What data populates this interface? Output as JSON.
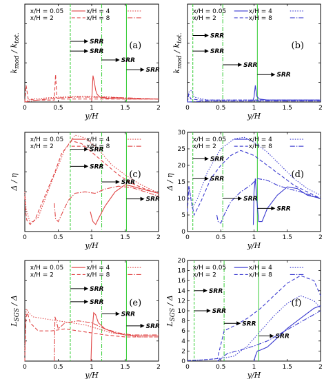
{
  "chart_data": [
    {
      "type": "line",
      "panel_label": "(a)",
      "xlabel": "y/H",
      "ylabel": "k_mod / k_tot.",
      "ylabel_main": "k",
      "ylabel_sub1": "mod",
      "ylabel_mid": " / k",
      "ylabel_sub2": "tot.",
      "xlim": [
        0,
        2
      ],
      "ylim": [
        0,
        1
      ],
      "xticks": [
        "0",
        "0.5",
        "1",
        "1.5",
        "2"
      ],
      "yticks": [],
      "color": "#e04545",
      "legend": [
        "x/H = 0.05",
        "x/H = 4",
        "x/H = 2",
        "x/H = 8"
      ],
      "vlines": [
        0.68,
        1.15,
        1.52
      ],
      "srr": [
        {
          "x0": 0.68,
          "x1": 0.95,
          "y": 0.62,
          "label": "SRR"
        },
        {
          "x0": 0.68,
          "x1": 0.95,
          "y": 0.52,
          "label": "SRR"
        },
        {
          "x0": 1.15,
          "x1": 1.42,
          "y": 0.43,
          "label": "SRR"
        },
        {
          "x0": 1.52,
          "x1": 1.79,
          "y": 0.33,
          "label": "SRR"
        }
      ],
      "series": [
        {
          "name": "x/H = 0.05",
          "dash": "",
          "x": [
            1.0,
            1.02,
            1.04,
            1.06,
            1.08,
            1.12,
            1.2,
            1.35,
            1.5,
            1.7,
            2.0
          ],
          "y": [
            0.01,
            0.27,
            0.2,
            0.12,
            0.08,
            0.05,
            0.04,
            0.035,
            0.03,
            0.03,
            0.03
          ]
        },
        {
          "name": "x/H = 2",
          "dash": "5,3",
          "x": [
            0.0,
            0.02,
            0.05,
            0.15,
            0.3,
            0.44,
            0.46,
            0.48,
            0.55,
            0.7,
            0.9,
            1.1,
            1.3,
            1.5,
            1.7,
            2.0
          ],
          "y": [
            0.0,
            0.17,
            0.03,
            0.02,
            0.02,
            0.02,
            0.28,
            0.04,
            0.03,
            0.03,
            0.03,
            0.03,
            0.03,
            0.03,
            0.03,
            0.03
          ]
        },
        {
          "name": "x/H = 4",
          "dash": "1.5,2",
          "x": [
            0.0,
            0.1,
            0.3,
            0.5,
            0.7,
            0.9,
            1.1,
            1.3,
            1.5,
            1.7,
            2.0
          ],
          "y": [
            0.0,
            0.03,
            0.04,
            0.05,
            0.055,
            0.06,
            0.055,
            0.05,
            0.04,
            0.035,
            0.03
          ]
        },
        {
          "name": "x/H = 8",
          "dash": "7,2,1.5,2",
          "x": [
            0.0,
            0.2,
            0.4,
            0.6,
            0.8,
            1.0,
            1.2,
            1.4,
            1.6,
            1.8,
            2.0
          ],
          "y": [
            0.0,
            0.02,
            0.035,
            0.045,
            0.05,
            0.05,
            0.048,
            0.045,
            0.04,
            0.035,
            0.03
          ]
        }
      ]
    },
    {
      "type": "line",
      "panel_label": "(b)",
      "xlabel": "y/H",
      "ylabel": "k_mod / k_tot.",
      "ylabel_main": "k",
      "ylabel_sub1": "mod",
      "ylabel_mid": " / k",
      "ylabel_sub2": "tot.",
      "xlim": [
        0,
        2
      ],
      "ylim": [
        0,
        1
      ],
      "xticks": [
        "0",
        "0.5",
        "1",
        "1.5",
        "2"
      ],
      "yticks": [],
      "color": "#3a3ad0",
      "legend": [
        "x/H = 0.05",
        "x/H = 4",
        "x/H = 2",
        "x/H = 8"
      ],
      "vlines": [
        0.08,
        0.53,
        1.05
      ],
      "srr": [
        {
          "x0": 0.08,
          "x1": 0.32,
          "y": 0.68,
          "label": "SRR"
        },
        {
          "x0": 0.08,
          "x1": 0.32,
          "y": 0.52,
          "label": "SRR"
        },
        {
          "x0": 0.53,
          "x1": 0.82,
          "y": 0.38,
          "label": "SRR"
        },
        {
          "x0": 1.05,
          "x1": 1.32,
          "y": 0.28,
          "label": "SRR"
        }
      ],
      "series": [
        {
          "name": "x/H = 0.05",
          "dash": "",
          "x": [
            0.98,
            1.0,
            1.02,
            1.04,
            1.08,
            1.2,
            1.5,
            2.0
          ],
          "y": [
            0.01,
            0.05,
            0.17,
            0.06,
            0.03,
            0.02,
            0.02,
            0.02
          ]
        },
        {
          "name": "x/H = 2",
          "dash": "5,3",
          "x": [
            0.0,
            0.02,
            0.05,
            0.2,
            0.5,
            1.0,
            1.5,
            2.0
          ],
          "y": [
            0.0,
            0.08,
            0.03,
            0.02,
            0.02,
            0.02,
            0.02,
            0.02
          ]
        },
        {
          "name": "x/H = 4",
          "dash": "1.5,2",
          "x": [
            0.0,
            0.02,
            0.06,
            0.1,
            0.3,
            0.6,
            1.0,
            1.5,
            2.0
          ],
          "y": [
            0.0,
            0.1,
            0.12,
            0.05,
            0.02,
            0.02,
            0.02,
            0.02,
            0.02
          ]
        },
        {
          "name": "x/H = 8",
          "dash": "7,2,1.5,2",
          "x": [
            0.0,
            0.3,
            0.6,
            1.0,
            1.5,
            2.0
          ],
          "y": [
            0.0,
            0.01,
            0.01,
            0.01,
            0.01,
            0.01
          ]
        }
      ]
    },
    {
      "type": "line",
      "panel_label": "(c)",
      "xlabel": "y/H",
      "ylabel": "Δ / η",
      "ylabel_main": "Δ / η",
      "ylabel_sub1": "",
      "ylabel_mid": "",
      "ylabel_sub2": "",
      "xlim": [
        0,
        2
      ],
      "ylim": [
        0,
        70
      ],
      "xticks": [
        "0",
        "0.5",
        "1",
        "1.5",
        "2"
      ],
      "yticks": [],
      "color": "#e04545",
      "legend": [
        "x/H = 0.05",
        "x/H = 4",
        "x/H = 2",
        "x/H = 8"
      ],
      "vlines": [
        0.68,
        1.15,
        1.52
      ],
      "srr": [
        {
          "x0": 0.68,
          "x1": 0.95,
          "y": 58,
          "label": "SRR"
        },
        {
          "x0": 0.68,
          "x1": 0.95,
          "y": 46,
          "label": "SRR"
        },
        {
          "x0": 1.15,
          "x1": 1.42,
          "y": 35,
          "label": "SRR"
        },
        {
          "x0": 1.52,
          "x1": 1.79,
          "y": 23,
          "label": "SRR"
        }
      ],
      "series": [
        {
          "name": "x/H = 0.05",
          "dash": "",
          "x": [
            0.98,
            1.0,
            1.02,
            1.06,
            1.1,
            1.2,
            1.35,
            1.5,
            1.6,
            1.75,
            2.0
          ],
          "y": [
            14,
            10,
            7,
            5,
            9,
            18,
            28,
            33,
            32,
            30,
            27
          ]
        },
        {
          "name": "x/H = 2",
          "dash": "5,3",
          "x": [
            0.0,
            0.01,
            0.03,
            0.08,
            0.15,
            0.3,
            0.45,
            0.55,
            0.7,
            0.85,
            1.0,
            1.2,
            1.4,
            1.6,
            1.8,
            2.0
          ],
          "y": [
            25,
            15,
            8,
            5,
            8,
            25,
            42,
            55,
            64,
            62,
            56,
            48,
            40,
            34,
            30,
            27
          ]
        },
        {
          "name": "x/H = 4",
          "dash": "1.5,2",
          "x": [
            0.0,
            0.02,
            0.08,
            0.2,
            0.4,
            0.6,
            0.75,
            0.9,
            1.1,
            1.3,
            1.5,
            1.7,
            2.0
          ],
          "y": [
            28,
            16,
            6,
            10,
            35,
            58,
            68,
            66,
            58,
            47,
            40,
            34,
            27
          ]
        },
        {
          "name": "x/H = 8",
          "dash": "7,2,1.5,2",
          "x": [
            0.44,
            0.46,
            0.5,
            0.55,
            0.65,
            0.75,
            0.9,
            1.05,
            1.2,
            1.4,
            1.6,
            1.8,
            2.0
          ],
          "y": [
            20,
            9,
            7,
            12,
            22,
            27,
            28,
            27,
            30,
            32,
            31,
            28,
            25
          ]
        }
      ]
    },
    {
      "type": "line",
      "panel_label": "(d)",
      "xlabel": "y/H",
      "ylabel": "Δ / η",
      "ylabel_main": "Δ / η",
      "ylabel_sub1": "",
      "ylabel_mid": "",
      "ylabel_sub2": "",
      "xlim": [
        0,
        2
      ],
      "ylim": [
        0,
        30
      ],
      "xticks": [
        "0",
        "0.5",
        "1",
        "1.5",
        "2"
      ],
      "yticks": [
        "0",
        "5",
        "10",
        "15",
        "20",
        "25",
        "30"
      ],
      "color": "#3a3ad0",
      "legend": [
        "x/H = 0.05",
        "x/H = 4",
        "x/H = 2",
        "x/H = 8"
      ],
      "vlines": [
        0.08,
        0.53,
        1.05
      ],
      "srr": [
        {
          "x0": 0.08,
          "x1": 0.32,
          "y": 22,
          "label": "SRR"
        },
        {
          "x0": 0.08,
          "x1": 0.32,
          "y": 16,
          "label": "SRR"
        },
        {
          "x0": 0.53,
          "x1": 0.82,
          "y": 10,
          "label": "SRR"
        },
        {
          "x0": 1.05,
          "x1": 1.32,
          "y": 7,
          "label": "SRR"
        }
      ],
      "series": [
        {
          "name": "x/H = 0.05",
          "dash": "",
          "x": [
            0.99,
            1.0,
            1.02,
            1.04,
            1.07,
            1.12,
            1.2,
            1.35,
            1.5,
            1.65,
            1.8,
            2.0
          ],
          "y": [
            2,
            12,
            16,
            10,
            3,
            3,
            7,
            11,
            13.5,
            13,
            11,
            10
          ]
        },
        {
          "name": "x/H = 2",
          "dash": "5,3",
          "x": [
            0.0,
            0.02,
            0.05,
            0.1,
            0.2,
            0.35,
            0.5,
            0.65,
            0.8,
            1.0,
            1.2,
            1.4,
            1.6,
            1.8,
            2.0
          ],
          "y": [
            6,
            14,
            10,
            5,
            9,
            16,
            20,
            23,
            24.5,
            23,
            20,
            17,
            14,
            12,
            10
          ]
        },
        {
          "name": "x/H = 4",
          "dash": "1.5,2",
          "x": [
            0.0,
            0.03,
            0.07,
            0.15,
            0.3,
            0.5,
            0.7,
            0.85,
            1.0,
            1.2,
            1.4,
            1.6,
            1.8,
            2.0
          ],
          "y": [
            10,
            13,
            7,
            10,
            18,
            25,
            28,
            28.5,
            27,
            24,
            20,
            16,
            13,
            11
          ]
        },
        {
          "name": "x/H = 8",
          "dash": "7,2,1.5,2",
          "x": [
            0.44,
            0.46,
            0.5,
            0.55,
            0.65,
            0.8,
            0.95,
            1.05,
            1.2,
            1.35,
            1.5,
            1.7,
            2.0
          ],
          "y": [
            5,
            3,
            2.5,
            5,
            9,
            12,
            14,
            16,
            15.5,
            14,
            13,
            12,
            10
          ]
        }
      ]
    },
    {
      "type": "line",
      "panel_label": "(e)",
      "xlabel": "y/H",
      "ylabel": "L_SGS / Δ",
      "ylabel_main": "L",
      "ylabel_sub1": "SGS",
      "ylabel_mid": " / Δ",
      "ylabel_sub2": "",
      "xlim": [
        0,
        2
      ],
      "ylim": [
        0,
        5
      ],
      "xticks": [
        "0",
        "0.5",
        "1",
        "1.5",
        "2"
      ],
      "yticks": [],
      "color": "#e04545",
      "legend": [
        "x/H = 0.05",
        "x/H = 4",
        "x/H = 2",
        "x/H = 8"
      ],
      "vlines": [
        0.68,
        1.15,
        1.52
      ],
      "srr": [
        {
          "x0": 0.68,
          "x1": 0.95,
          "y": 3.6,
          "label": "SRR"
        },
        {
          "x0": 0.68,
          "x1": 0.95,
          "y": 2.95,
          "label": "SRR"
        },
        {
          "x0": 1.15,
          "x1": 1.42,
          "y": 2.35,
          "label": "SRR"
        },
        {
          "x0": 1.52,
          "x1": 1.79,
          "y": 1.75,
          "label": "SRR"
        }
      ],
      "series": [
        {
          "name": "x/H = 0.05",
          "dash": "",
          "x": [
            0.99,
            1.0,
            1.03,
            1.06,
            1.1,
            1.2,
            1.35,
            1.5,
            1.7,
            2.0
          ],
          "y": [
            0.0,
            1.2,
            2.4,
            2.3,
            1.9,
            1.6,
            1.4,
            1.3,
            1.25,
            1.25
          ]
        },
        {
          "name": "x/H = 2",
          "dash": "5,3",
          "x": [
            0.0,
            0.01,
            0.02,
            0.04,
            0.08,
            0.2,
            0.4,
            0.6,
            0.8,
            1.0,
            1.2,
            1.5,
            1.8,
            2.0
          ],
          "y": [
            0.0,
            1.5,
            2.2,
            2.4,
            1.9,
            1.5,
            1.5,
            1.6,
            1.5,
            1.4,
            1.3,
            1.2,
            1.2,
            1.2
          ]
        },
        {
          "name": "x/H = 4",
          "dash": "1.5,2",
          "x": [
            0.0,
            0.02,
            0.06,
            0.12,
            0.3,
            0.5,
            0.7,
            0.9,
            1.1,
            1.3,
            1.5,
            1.7,
            2.0
          ],
          "y": [
            0.5,
            2.6,
            2.4,
            2.2,
            2.1,
            2.0,
            1.9,
            1.8,
            1.6,
            1.4,
            1.3,
            1.2,
            1.2
          ]
        },
        {
          "name": "x/H = 8",
          "dash": "7,2,1.5,2",
          "x": [
            0.44,
            0.45,
            0.47,
            0.5,
            0.6,
            0.8,
            1.0,
            1.2,
            1.4,
            1.6,
            1.8,
            2.0
          ],
          "y": [
            0.0,
            2.2,
            2.0,
            1.6,
            1.9,
            2.0,
            1.9,
            1.6,
            1.4,
            1.3,
            1.3,
            1.3
          ]
        }
      ]
    },
    {
      "type": "line",
      "panel_label": "(f)",
      "xlabel": "y/H",
      "ylabel": "L_SGS / Δ",
      "ylabel_main": "L",
      "ylabel_sub1": "SGS",
      "ylabel_mid": " / Δ",
      "ylabel_sub2": "",
      "xlim": [
        0,
        2
      ],
      "ylim": [
        0,
        20
      ],
      "xticks": [
        "0",
        "0.5",
        "1",
        "1.5",
        "2"
      ],
      "yticks": [
        "0",
        "2",
        "4",
        "6",
        "8",
        "10",
        "12",
        "14",
        "16",
        "18",
        "20"
      ],
      "color": "#3a3ad0",
      "legend": [
        "x/H = 0.05",
        "x/H = 4",
        "x/H = 2",
        "x/H = 8"
      ],
      "vlines": [
        0.1,
        0.55,
        1.07
      ],
      "srr": [
        {
          "x0": 0.1,
          "x1": 0.3,
          "y": 14,
          "label": "SRR"
        },
        {
          "x0": 0.1,
          "x1": 0.35,
          "y": 10,
          "label": "SRR"
        },
        {
          "x0": 0.55,
          "x1": 0.8,
          "y": 7.5,
          "label": "SRR"
        },
        {
          "x0": 1.07,
          "x1": 1.3,
          "y": 5,
          "label": "SRR"
        }
      ],
      "series": [
        {
          "name": "x/H = 0.05",
          "dash": "",
          "x": [
            1.0,
            1.02,
            1.05,
            1.1,
            1.2,
            1.3,
            1.5,
            1.7,
            1.9,
            2.0
          ],
          "y": [
            0.0,
            1.0,
            2.0,
            2.2,
            2.8,
            4.0,
            6.5,
            8.5,
            10.5,
            11.0
          ]
        },
        {
          "name": "x/H = 2",
          "dash": "5,3",
          "x": [
            0.0,
            0.2,
            0.45,
            0.55,
            0.7,
            0.9,
            1.1,
            1.3,
            1.5,
            1.7,
            1.9,
            2.0
          ],
          "y": [
            0.1,
            0.2,
            0.5,
            6.0,
            7.0,
            8.5,
            10.5,
            13.0,
            15.5,
            17.0,
            16.0,
            13.0
          ]
        },
        {
          "name": "x/H = 4",
          "dash": "1.5,2",
          "x": [
            0.0,
            0.3,
            0.55,
            0.7,
            0.9,
            1.1,
            1.3,
            1.5,
            1.7,
            1.9,
            2.0
          ],
          "y": [
            0.1,
            0.3,
            0.6,
            1.0,
            3.0,
            6.0,
            9.0,
            11.5,
            13.0,
            12.0,
            10.5
          ]
        },
        {
          "name": "x/H = 8",
          "dash": "7,2,1.5,2",
          "x": [
            0.45,
            0.5,
            0.6,
            0.8,
            1.0,
            1.2,
            1.4,
            1.6,
            1.8,
            2.0
          ],
          "y": [
            0.0,
            0.5,
            1.5,
            2.2,
            3.0,
            4.0,
            5.5,
            7.0,
            8.5,
            10.0
          ]
        }
      ]
    }
  ]
}
